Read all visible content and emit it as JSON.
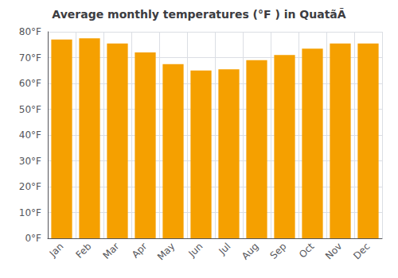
{
  "chart_data": {
    "type": "bar",
    "title": "Average monthly temperatures (°F ) in QuatãÃ",
    "categories": [
      "Jan",
      "Feb",
      "Mar",
      "Apr",
      "May",
      "Jun",
      "Jul",
      "Aug",
      "Sep",
      "Oct",
      "Nov",
      "Dec"
    ],
    "values": [
      77,
      77.5,
      75.5,
      72,
      67.5,
      65,
      65.5,
      69,
      71,
      73.5,
      75.5,
      75.5
    ],
    "color": "#F5A000",
    "ylim": [
      0,
      80
    ],
    "yticks": [
      {
        "value": 0,
        "label": "0°F"
      },
      {
        "value": 10,
        "label": "10°F"
      },
      {
        "value": 20,
        "label": "20°F"
      },
      {
        "value": 30,
        "label": "30°F"
      },
      {
        "value": 40,
        "label": "40°F"
      },
      {
        "value": 50,
        "label": "50°F"
      },
      {
        "value": 60,
        "label": "60°F"
      },
      {
        "value": 70,
        "label": "70°F"
      },
      {
        "value": 80,
        "label": "80°F"
      }
    ],
    "grid": true
  }
}
